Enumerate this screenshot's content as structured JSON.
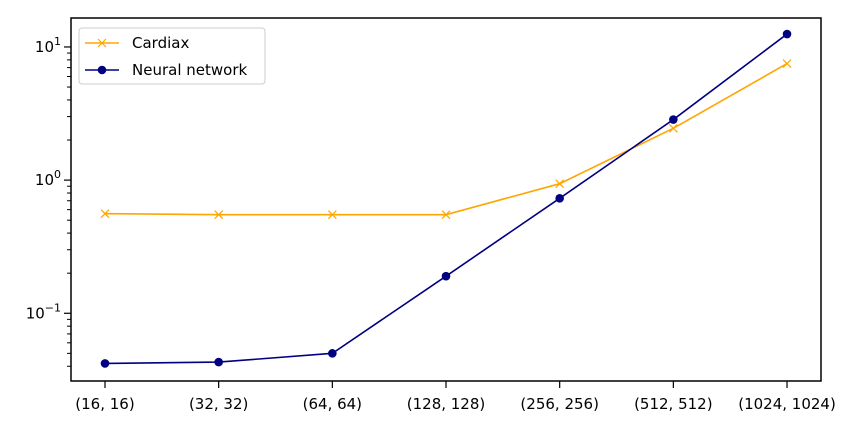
{
  "chart_data": {
    "type": "line",
    "categories": [
      "(16, 16)",
      "(32, 32)",
      "(64, 64)",
      "(128, 128)",
      "(256, 256)",
      "(512, 512)",
      "(1024, 1024)"
    ],
    "yscale": "log",
    "ylim": [
      0.031,
      16.5
    ],
    "y_tick_labels": [
      {
        "base": "10",
        "exp": "1",
        "value": 10
      },
      {
        "base": "10",
        "exp": "0",
        "value": 1
      },
      {
        "base": "10",
        "exp": "−1",
        "value": 0.1
      }
    ],
    "grid": false,
    "legend_position": "top-left",
    "series": [
      {
        "name": "Cardiax",
        "color": "#FFA500",
        "marker": "x",
        "values": [
          0.56,
          0.55,
          0.55,
          0.55,
          0.94,
          2.45,
          7.5
        ]
      },
      {
        "name": "Neural network",
        "color": "#000080",
        "marker": "circle",
        "values": [
          0.042,
          0.043,
          0.05,
          0.19,
          0.73,
          2.85,
          12.5
        ]
      }
    ]
  }
}
